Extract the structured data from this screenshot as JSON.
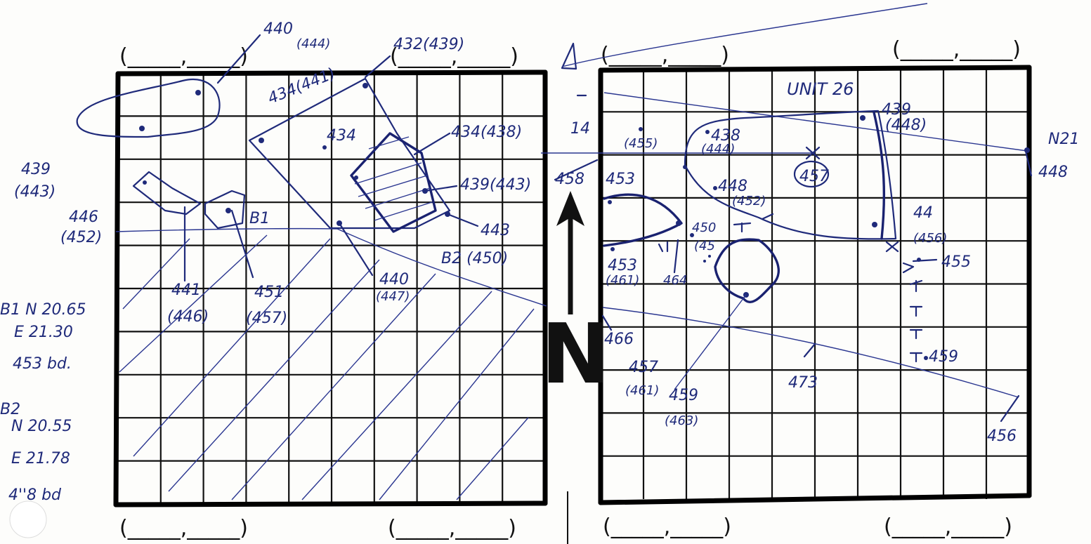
{
  "north_arrow": {
    "letter": "N",
    "label_14": "14"
  },
  "unit_label": "UNIT 26",
  "edge_label_n21": "N21",
  "corner_brackets": {
    "left_top_1": "(_____,_____)",
    "left_top_2": "(_____,_____)",
    "right_top_1": "(_____,_____)",
    "right_top_2": "(_____,_____)",
    "left_bottom_1": "(_____,_____)",
    "left_bottom_2": "(_____,_____)",
    "right_bottom_1": "(_____,_____)",
    "right_bottom_2": "(_____,_____)"
  },
  "margin_notes": {
    "b1_lines": [
      "B1 N 20.65",
      "E 21.30",
      "453 bd."
    ],
    "b2_lines": [
      "B2",
      "N 20.55",
      "E 21.78",
      "4''8 bd"
    ]
  },
  "left_labels": {
    "l440": "440",
    "l444": "(444)",
    "l432": "432(439)",
    "l434a": "434(441)",
    "l434b": "434",
    "l434c": "434(438)",
    "l439a": "439",
    "l443a": "(443)",
    "l439b": "439(443)",
    "l446": "446",
    "l452": "(452)",
    "lB1": "B1",
    "l443": "443",
    "lB2": "B2 (450)",
    "l440b": "440",
    "l447": "(447)",
    "l441": "441",
    "l446b": "(446)",
    "l451": "451",
    "l457": "(457)"
  },
  "right_labels": {
    "r455": "(455)",
    "r438": "438",
    "r444": "(444)",
    "r439": "439",
    "r448": "(448)",
    "r457c": "457",
    "r448e": "448",
    "r458": "458",
    "r453": "453",
    "r448b": "448",
    "r452": "(452)",
    "r450": "450",
    "r45x": "(45",
    "r453b": "453",
    "r461": "(461)",
    "r464": "464",
    "r44": "44",
    "r456": "(456)",
    "r455b": "455",
    "r466": "466",
    "r473": "473",
    "r459": "459",
    "r457b": "457",
    "r461b": "(461)",
    "r459b": "459",
    "r463": "(463)",
    "r456b": "456"
  }
}
